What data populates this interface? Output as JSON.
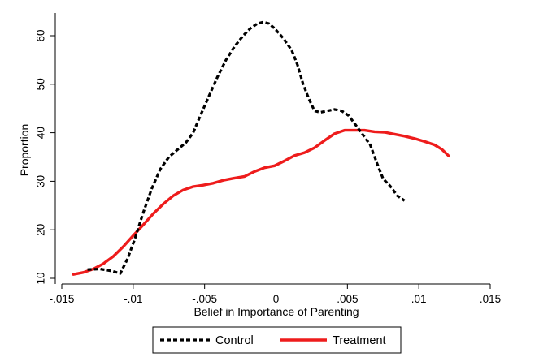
{
  "chart_data": {
    "type": "line",
    "title": "",
    "xlabel": "Belief in Importance of Parenting",
    "ylabel": "Proportion",
    "xlim": [
      -0.015,
      0.015
    ],
    "ylim": [
      10,
      63
    ],
    "x_ticks": [
      -0.015,
      -0.01,
      -0.005,
      0,
      0.005,
      0.01,
      0.015
    ],
    "x_tick_labels": [
      "-.015",
      "-.01",
      "-.005",
      "0",
      ".005",
      ".01",
      ".015"
    ],
    "y_ticks": [
      10,
      20,
      30,
      40,
      50,
      60
    ],
    "y_tick_labels": [
      "10",
      "20",
      "30",
      "40",
      "50",
      "60"
    ],
    "grid": false,
    "legend_position": "bottom",
    "series": [
      {
        "name": "Control",
        "color": "#000000",
        "style": "dashed",
        "points": [
          [
            -0.0132,
            11.8
          ],
          [
            -0.0123,
            11.9
          ],
          [
            -0.0115,
            11.5
          ],
          [
            -0.0109,
            11.0
          ],
          [
            -0.0104,
            14.0
          ],
          [
            -0.0099,
            18.0
          ],
          [
            -0.0093,
            23.5
          ],
          [
            -0.0087,
            28.5
          ],
          [
            -0.0081,
            32.5
          ],
          [
            -0.0075,
            35.0
          ],
          [
            -0.0069,
            36.5
          ],
          [
            -0.0063,
            38.0
          ],
          [
            -0.0058,
            40.0
          ],
          [
            -0.0053,
            43.5
          ],
          [
            -0.0047,
            47.5
          ],
          [
            -0.0041,
            51.5
          ],
          [
            -0.0035,
            55.0
          ],
          [
            -0.0029,
            57.8
          ],
          [
            -0.0023,
            60.0
          ],
          [
            -0.0018,
            61.5
          ],
          [
            -0.0013,
            62.5
          ],
          [
            -0.0009,
            62.8
          ],
          [
            -0.0005,
            62.5
          ],
          [
            -0.0001,
            61.5
          ],
          [
            0.0005,
            59.5
          ],
          [
            0.0011,
            57.0
          ],
          [
            0.0015,
            54.0
          ],
          [
            0.0019,
            50.0
          ],
          [
            0.0023,
            47.0
          ],
          [
            0.0027,
            44.5
          ],
          [
            0.0031,
            44.2
          ],
          [
            0.0036,
            44.5
          ],
          [
            0.0041,
            44.8
          ],
          [
            0.0046,
            44.5
          ],
          [
            0.0051,
            43.5
          ],
          [
            0.0056,
            41.5
          ],
          [
            0.0061,
            39.5
          ],
          [
            0.0066,
            37.5
          ],
          [
            0.0071,
            33.5
          ],
          [
            0.0075,
            30.5
          ],
          [
            0.008,
            29.0
          ],
          [
            0.0085,
            27.0
          ],
          [
            0.009,
            26.0
          ]
        ]
      },
      {
        "name": "Treatment",
        "color": "#ee1c1c",
        "style": "solid",
        "points": [
          [
            -0.0142,
            10.8
          ],
          [
            -0.0135,
            11.2
          ],
          [
            -0.0128,
            11.9
          ],
          [
            -0.0121,
            13.0
          ],
          [
            -0.0114,
            14.5
          ],
          [
            -0.0107,
            16.5
          ],
          [
            -0.01,
            18.8
          ],
          [
            -0.0093,
            21.0
          ],
          [
            -0.0086,
            23.3
          ],
          [
            -0.0079,
            25.3
          ],
          [
            -0.0072,
            27.0
          ],
          [
            -0.0065,
            28.2
          ],
          [
            -0.0058,
            28.9
          ],
          [
            -0.0051,
            29.2
          ],
          [
            -0.0044,
            29.6
          ],
          [
            -0.0037,
            30.2
          ],
          [
            -0.003,
            30.6
          ],
          [
            -0.0022,
            31.0
          ],
          [
            -0.0015,
            32.0
          ],
          [
            -0.0008,
            32.8
          ],
          [
            -0.0001,
            33.2
          ],
          [
            0.0006,
            34.2
          ],
          [
            0.0013,
            35.3
          ],
          [
            0.002,
            35.9
          ],
          [
            0.0027,
            36.9
          ],
          [
            0.0034,
            38.4
          ],
          [
            0.0041,
            39.8
          ],
          [
            0.0048,
            40.5
          ],
          [
            0.0055,
            40.5
          ],
          [
            0.0062,
            40.5
          ],
          [
            0.0069,
            40.2
          ],
          [
            0.0076,
            40.1
          ],
          [
            0.0083,
            39.7
          ],
          [
            0.009,
            39.3
          ],
          [
            0.0097,
            38.8
          ],
          [
            0.0104,
            38.2
          ],
          [
            0.0111,
            37.5
          ],
          [
            0.0116,
            36.6
          ],
          [
            0.0121,
            35.2
          ]
        ]
      }
    ]
  }
}
